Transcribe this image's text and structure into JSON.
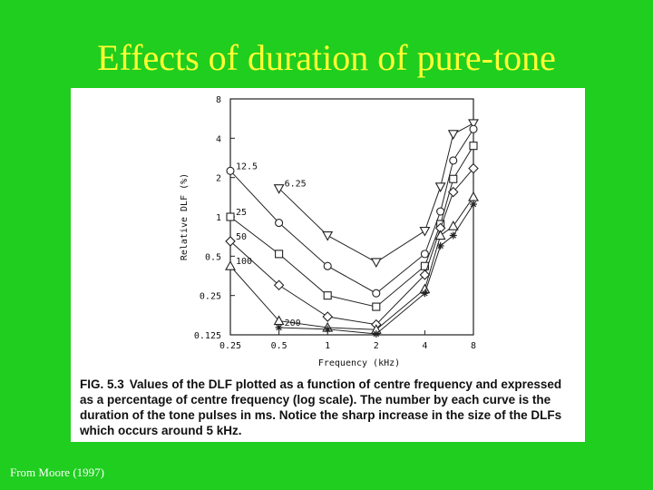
{
  "slide": {
    "title": "Effects of duration of pure-tone",
    "source": "From Moore (1997)"
  },
  "caption": {
    "fig_label": "FIG. 5.3",
    "text": "Values of the DLF plotted as a function of centre frequency and expressed as a percentage of centre frequency (log scale). The number by each curve is the duration of the tone pulses in ms. Notice the sharp increase in the size of the DLFs which occurs around 5 kHz."
  },
  "chart_data": {
    "type": "line",
    "xlabel": "Frequency (kHz)",
    "ylabel": "Relative DLF (%)",
    "x_scale": "log",
    "y_scale": "log",
    "x_ticks": [
      0.25,
      0.5,
      1,
      2,
      4,
      8
    ],
    "x_tick_labels": [
      "0.25",
      "0.5",
      "1",
      "2",
      "4",
      "8"
    ],
    "y_ticks": [
      0.125,
      0.25,
      0.5,
      1,
      2,
      4,
      8
    ],
    "y_tick_labels": [
      "0.125",
      "0.25",
      "0.5",
      "1",
      "2",
      "4",
      "8"
    ],
    "xlim": [
      0.25,
      8
    ],
    "ylim": [
      0.125,
      8
    ],
    "grid": false,
    "series": [
      {
        "name": "6.25",
        "marker": "triangle-down",
        "x": [
          0.5,
          1,
          2,
          4,
          5,
          6,
          8
        ],
        "y": [
          1.65,
          0.72,
          0.45,
          0.78,
          1.7,
          4.3,
          5.2
        ]
      },
      {
        "name": "12.5",
        "marker": "circle",
        "x": [
          0.25,
          0.5,
          1,
          2,
          4,
          5,
          6,
          8
        ],
        "y": [
          2.25,
          0.9,
          0.42,
          0.26,
          0.52,
          1.1,
          2.7,
          4.7
        ]
      },
      {
        "name": "25",
        "marker": "square",
        "x": [
          0.25,
          0.5,
          1,
          2,
          4,
          5,
          6,
          8
        ],
        "y": [
          1.0,
          0.52,
          0.25,
          0.205,
          0.42,
          0.88,
          1.95,
          3.5
        ]
      },
      {
        "name": "50",
        "marker": "diamond",
        "x": [
          0.25,
          0.5,
          1,
          2,
          4,
          5,
          6,
          8
        ],
        "y": [
          0.65,
          0.3,
          0.172,
          0.15,
          0.36,
          0.82,
          1.55,
          2.35
        ]
      },
      {
        "name": "100",
        "marker": "triangle-up",
        "x": [
          0.25,
          0.5,
          1,
          2,
          4,
          5,
          6,
          8
        ],
        "y": [
          0.42,
          0.16,
          0.142,
          0.137,
          0.28,
          0.72,
          0.85,
          1.42
        ]
      },
      {
        "name": "200",
        "marker": "asterisk",
        "x": [
          0.5,
          1,
          2,
          4,
          5,
          6,
          8
        ],
        "y": [
          0.142,
          0.138,
          0.127,
          0.26,
          0.6,
          0.72,
          1.25
        ]
      }
    ],
    "series_labels": [
      "12.5",
      "6.25",
      "25",
      "50",
      "100",
      "200"
    ]
  }
}
